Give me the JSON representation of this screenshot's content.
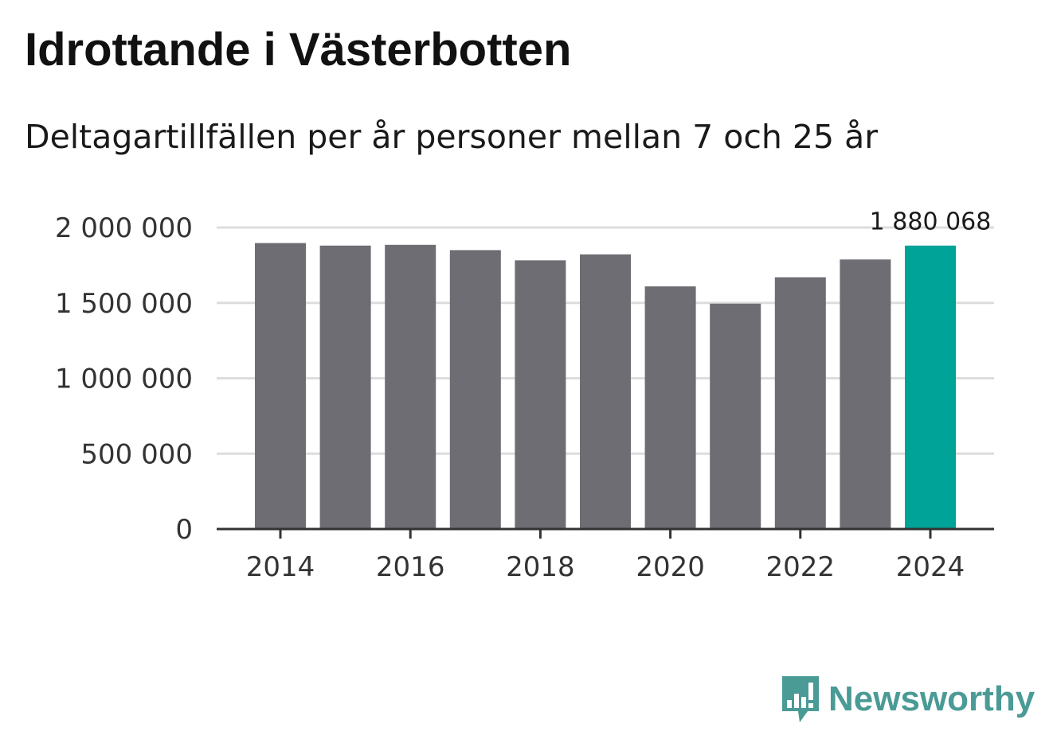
{
  "title": "Idrottande i Västerbotten",
  "subtitle": "Deltagartillfällen per år personer mellan 7 och 25 år",
  "chart_data": {
    "type": "bar",
    "categories": [
      "2014",
      "2015",
      "2016",
      "2017",
      "2018",
      "2019",
      "2020",
      "2021",
      "2022",
      "2023",
      "2024"
    ],
    "values": [
      1897000,
      1880000,
      1885000,
      1850000,
      1782000,
      1822000,
      1610000,
      1495000,
      1670000,
      1788000,
      1880068
    ],
    "x_tick_labels": [
      "2014",
      "2016",
      "2018",
      "2020",
      "2022",
      "2024"
    ],
    "y_ticks": [
      0,
      500000,
      1000000,
      1500000,
      2000000
    ],
    "y_tick_labels": [
      "0",
      "500 000",
      "1 000 000",
      "1 500 000",
      "2 000 000"
    ],
    "ylim": [
      0,
      2000000
    ],
    "highlight_index": 10,
    "highlight_label": "1 880 068",
    "colors": {
      "bar": "#6e6d73",
      "highlight": "#00a398",
      "grid": "#dddddd",
      "axis": "#333333"
    },
    "grid": true,
    "xlabel": "",
    "ylabel": ""
  },
  "brand": {
    "name": "Newsworthy",
    "color": "#4a9a95",
    "icon": "newsworthy-logo-icon"
  }
}
